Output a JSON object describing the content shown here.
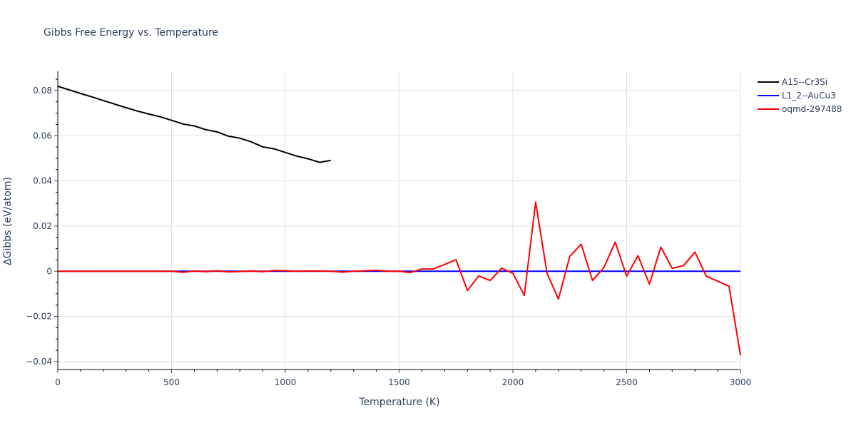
{
  "chart_data": {
    "type": "line",
    "title": "Gibbs Free Energy vs. Temperature",
    "xlabel": "Temperature (K)",
    "ylabel": "ΔGibbs (eV/atom)",
    "xlim": [
      0,
      3000
    ],
    "ylim": [
      -0.0435,
      0.0885
    ],
    "grid": true,
    "legend_position": "top-right",
    "x_ticks": [
      0,
      500,
      1000,
      1500,
      2000,
      2500,
      3000
    ],
    "x_tick_labels": [
      "0",
      "500",
      "1000",
      "1500",
      "2000",
      "2500",
      "3000"
    ],
    "y_ticks": [
      -0.04,
      -0.02,
      0,
      0.02,
      0.04,
      0.06,
      0.08
    ],
    "y_tick_labels": [
      "−0.04",
      "−0.02",
      "0",
      "0.02",
      "0.04",
      "0.06",
      "0.08"
    ],
    "series": [
      {
        "name": "A15--Cr3Si",
        "color": "#000000",
        "x": [
          0,
          50,
          100,
          150,
          200,
          250,
          300,
          350,
          400,
          450,
          500,
          550,
          600,
          650,
          700,
          750,
          800,
          850,
          900,
          950,
          1000,
          1050,
          1100,
          1150,
          1200
        ],
        "values": [
          0.0819,
          0.0803,
          0.0787,
          0.0772,
          0.0756,
          0.074,
          0.0724,
          0.0709,
          0.0696,
          0.0684,
          0.0668,
          0.0652,
          0.0643,
          0.0627,
          0.0617,
          0.0598,
          0.0589,
          0.0573,
          0.0551,
          0.0542,
          0.0526,
          0.051,
          0.0498,
          0.0482,
          0.0491
        ]
      },
      {
        "name": "L1_2--AuCu3",
        "color": "#0000ff",
        "x": [
          0,
          3000
        ],
        "values": [
          0,
          0
        ]
      },
      {
        "name": "oqmd-297488",
        "color": "#ff0000",
        "x": [
          0,
          50,
          100,
          150,
          200,
          250,
          300,
          350,
          400,
          450,
          500,
          550,
          600,
          650,
          700,
          750,
          800,
          850,
          900,
          950,
          1000,
          1050,
          1100,
          1150,
          1200,
          1250,
          1300,
          1350,
          1400,
          1450,
          1500,
          1550,
          1600,
          1650,
          1700,
          1750,
          1800,
          1850,
          1900,
          1950,
          2000,
          2050,
          2100,
          2150,
          2200,
          2250,
          2300,
          2350,
          2400,
          2450,
          2500,
          2550,
          2600,
          2650,
          2700,
          2750,
          2800,
          2850,
          2900,
          2950,
          3000
        ],
        "values": [
          0,
          0,
          0,
          0,
          0,
          0,
          0,
          0,
          0,
          0,
          0,
          -0.0005,
          0.0001,
          -0.0002,
          0.0002,
          -0.0003,
          -0.0001,
          0.0001,
          -0.0002,
          0.0003,
          0.0002,
          0,
          0.0001,
          0.0001,
          0,
          -0.0004,
          0,
          0.0002,
          0.0004,
          0,
          0,
          -0.0006,
          0.001,
          0.001,
          0.003,
          0.0051,
          -0.0085,
          -0.0021,
          -0.0041,
          0.0013,
          -0.0009,
          -0.0107,
          0.0306,
          -0.0009,
          -0.0123,
          0.0066,
          0.012,
          -0.0041,
          0.0016,
          0.0129,
          -0.0022,
          0.0069,
          -0.0057,
          0.0107,
          0.0013,
          0.0025,
          0.0085,
          -0.0022,
          -0.0044,
          -0.0066,
          -0.0372
        ]
      }
    ]
  }
}
